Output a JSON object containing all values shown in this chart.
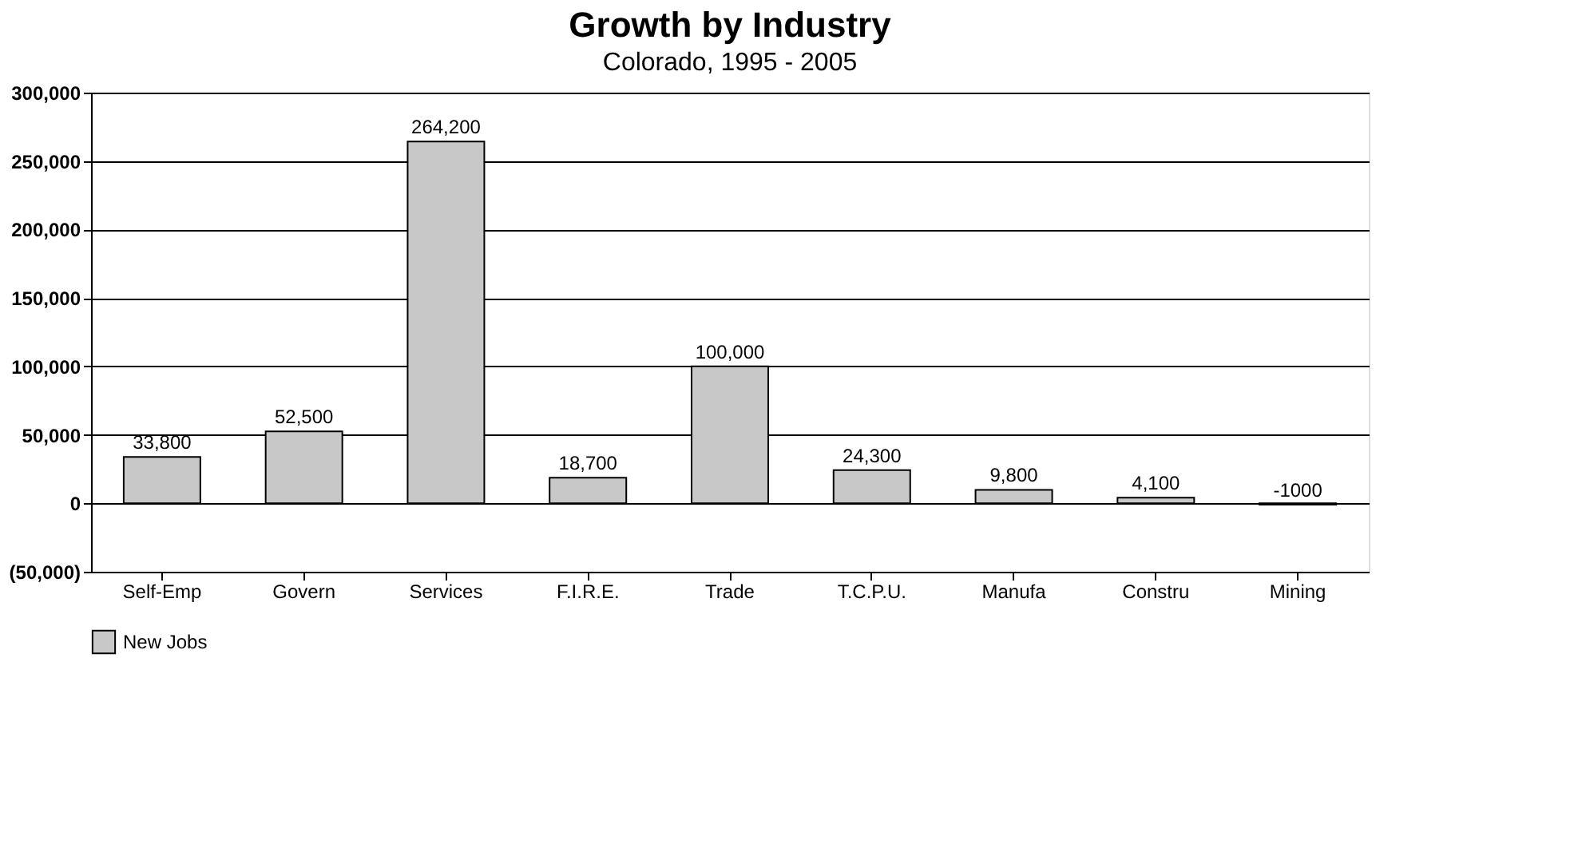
{
  "chart_data": {
    "type": "bar",
    "title": "Growth by Industry",
    "subtitle": "Colorado, 1995 - 2005",
    "categories": [
      "Self-Emp",
      "Govern",
      "Services",
      "F.I.R.E.",
      "Trade",
      "T.C.P.U.",
      "Manufa",
      "Constru",
      "Mining"
    ],
    "series": [
      {
        "name": "New Jobs",
        "color": "#c8c8c8",
        "values": [
          33800,
          52500,
          264200,
          18700,
          100000,
          24300,
          9800,
          4100,
          -1000
        ],
        "value_labels": [
          "33,800",
          "52,500",
          "264,200",
          "18,700",
          "100,000",
          "24,300",
          "9,800",
          "4,100",
          "-1000"
        ]
      }
    ],
    "ylim": [
      -50000,
      300000
    ],
    "yticks": [
      {
        "value": -50000,
        "label": "(50,000)"
      },
      0,
      {
        "value": 50000,
        "label": "50,000"
      },
      {
        "value": 100000,
        "label": "100,000"
      },
      {
        "value": 150000,
        "label": "150,000"
      },
      {
        "value": 200000,
        "label": "200,000"
      },
      {
        "value": 250000,
        "label": "250,000"
      },
      {
        "value": 300000,
        "label": "300,000"
      }
    ],
    "grid": "y",
    "legend": "bottom"
  }
}
